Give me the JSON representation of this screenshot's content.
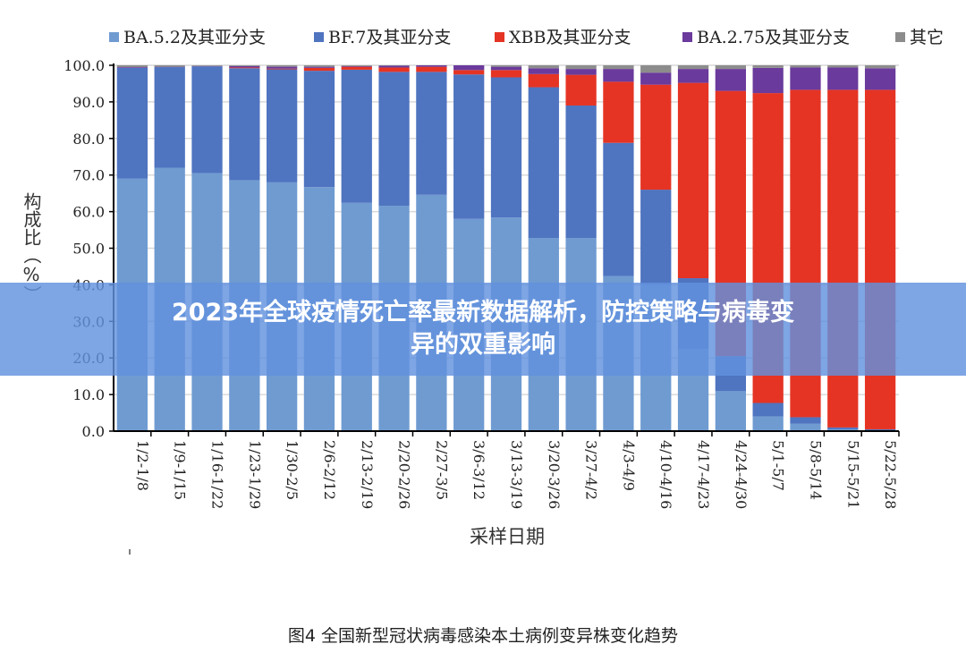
{
  "banner_title": "2023年全球疫情死亡率最新数据解析，防控策略与病毒变异的双重影响",
  "caption": "图4 全国新型冠状病毒感染本土病例变异株变化趋势",
  "chart_data": {
    "type": "bar",
    "stacked": true,
    "xlabel": "采样日期",
    "ylabel": "构成比（%）",
    "ylim": [
      0,
      100
    ],
    "yticks": [
      "0.0",
      "10.0",
      "20.0",
      "30.0",
      "40.0",
      "50.0",
      "60.0",
      "70.0",
      "80.0",
      "90.0",
      "100.0"
    ],
    "grid": true,
    "legend_position": "top",
    "categories": [
      "1/2-1/8",
      "1/9-1/15",
      "1/16-1/22",
      "1/23-1/29",
      "1/30-2/5",
      "2/6-2/12",
      "2/13-2/19",
      "2/20-2/26",
      "2/27-3/5",
      "3/6-3/12",
      "3/13-3/19",
      "3/20-3/26",
      "3/27-4/2",
      "4/3-4/9",
      "4/10-4/16",
      "4/17-4/23",
      "4/24-4/30",
      "5/1-5/7",
      "5/8-5/14",
      "5/15-5/21",
      "5/22-5/28"
    ],
    "series": [
      {
        "name": "BA.5.2及其亚分支",
        "color": "#6f9bd1",
        "values": [
          69,
          72,
          70.5,
          68.6,
          68,
          66.7,
          62.4,
          61.6,
          64.6,
          58,
          58.4,
          52.8,
          52.8,
          42.4,
          40,
          22.5,
          11,
          4,
          2,
          0.5,
          0.2
        ]
      },
      {
        "name": "BF.7及其亚分支",
        "color": "#4f74c0",
        "values": [
          30.3,
          27.5,
          29.2,
          30.6,
          30.9,
          31.8,
          36.4,
          36.6,
          33.6,
          39.5,
          38.3,
          41.2,
          36.2,
          36.4,
          26,
          19.3,
          9.5,
          3.7,
          1.8,
          0.5,
          0.3
        ]
      },
      {
        "name": "XBB及其亚分支",
        "color": "#e53424",
        "values": [
          0,
          0,
          0,
          0.2,
          0.2,
          0.8,
          0.8,
          1.2,
          1.4,
          1.2,
          2,
          3.6,
          8.4,
          16.7,
          28.7,
          53.4,
          72.5,
          84.7,
          89.5,
          92.3,
          92.8
        ]
      },
      {
        "name": "BA.2.75及其亚分支",
        "color": "#6a3a9c",
        "values": [
          0.2,
          0.1,
          0.1,
          0.4,
          0.5,
          0.3,
          0.2,
          0.5,
          0.4,
          1.3,
          0.9,
          1.6,
          1.6,
          3.5,
          3.3,
          3.8,
          6,
          6.9,
          6.1,
          6.1,
          5.9
        ]
      },
      {
        "name": "其它",
        "color": "#8c8c8c",
        "values": [
          0.5,
          0.4,
          0.2,
          0.2,
          0.4,
          0.4,
          0.2,
          0.1,
          0,
          0,
          0.4,
          0.8,
          1,
          1,
          2,
          1,
          1,
          0.7,
          0.6,
          0.6,
          0.8
        ]
      }
    ]
  }
}
